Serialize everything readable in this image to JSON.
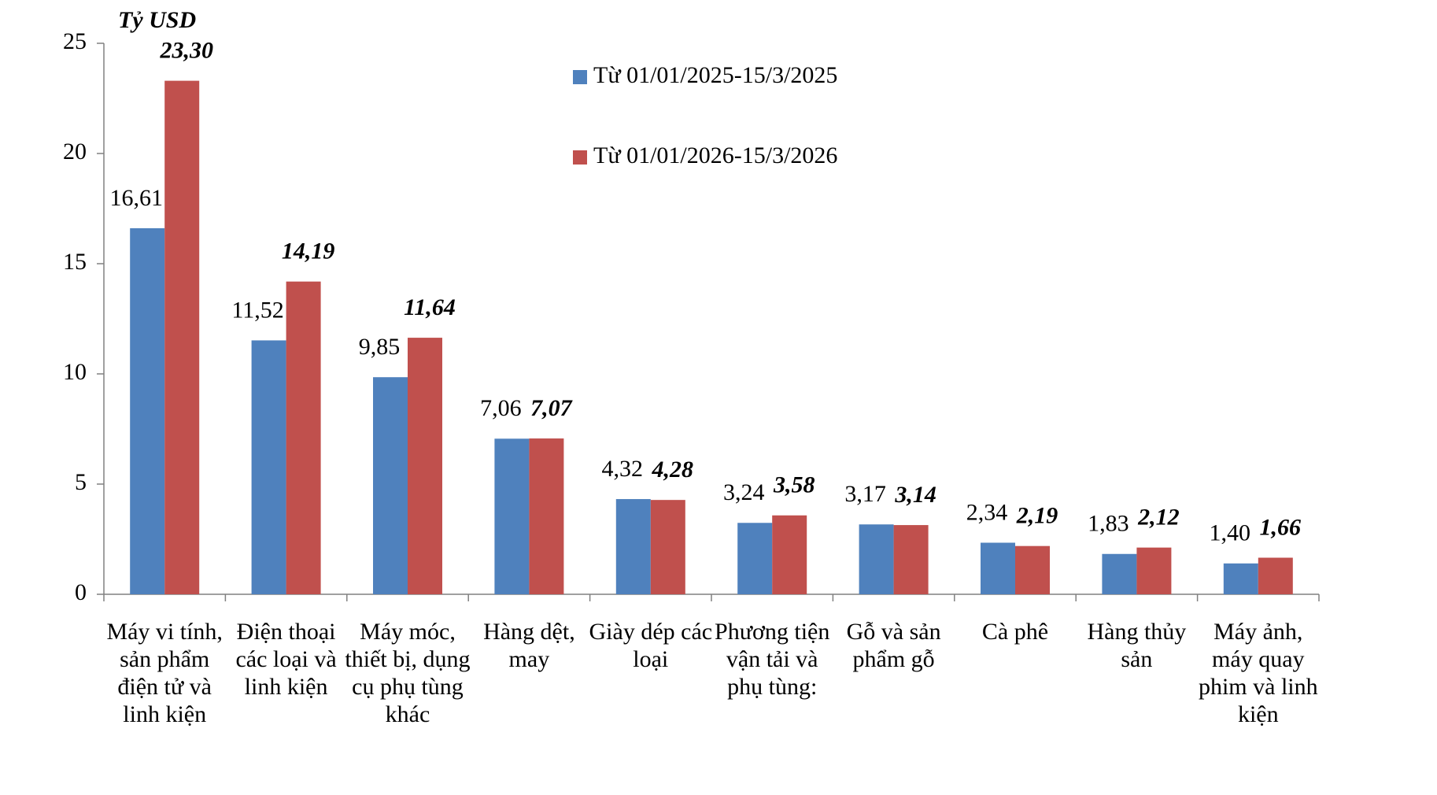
{
  "chart_data": {
    "type": "bar",
    "y_label": "Tỷ USD",
    "categories": [
      "Máy vi tính, sản phẩm điện tử và linh kiện",
      "Điện thoại các loại và linh kiện",
      "Máy móc, thiết bị, dụng cụ phụ tùng khác",
      "Hàng dệt, may",
      "Giày dép các loại",
      "Phương tiện vận tải và phụ tùng:",
      "Gỗ và sản phẩm gỗ",
      "Cà phê",
      "Hàng thủy sản",
      "Máy ảnh, máy quay phim và linh kiện"
    ],
    "series": [
      {
        "name": "Từ 01/01/2025-15/3/2025",
        "color": "#4f81bd",
        "values": [
          16.61,
          11.52,
          9.85,
          7.06,
          4.32,
          3.24,
          3.17,
          2.34,
          1.83,
          1.4
        ],
        "value_labels": [
          "16,61",
          "11,52",
          "9,85",
          "7,06",
          "4,32",
          "3,24",
          "3,17",
          "2,34",
          "1,83",
          "1,40"
        ]
      },
      {
        "name": "Từ 01/01/2026-15/3/2026",
        "color": "#c0504d",
        "values": [
          23.3,
          14.19,
          11.64,
          7.07,
          4.28,
          3.58,
          3.14,
          2.19,
          2.12,
          1.66
        ],
        "value_labels": [
          "23,30",
          "14,19",
          "11,64",
          "7,07",
          "4,28",
          "3,58",
          "3,14",
          "2,19",
          "2,12",
          "1,66"
        ]
      }
    ],
    "ylim": [
      0,
      25
    ],
    "yticks": [
      0,
      5,
      10,
      15,
      20,
      25
    ],
    "grid": false,
    "legend": "top"
  }
}
